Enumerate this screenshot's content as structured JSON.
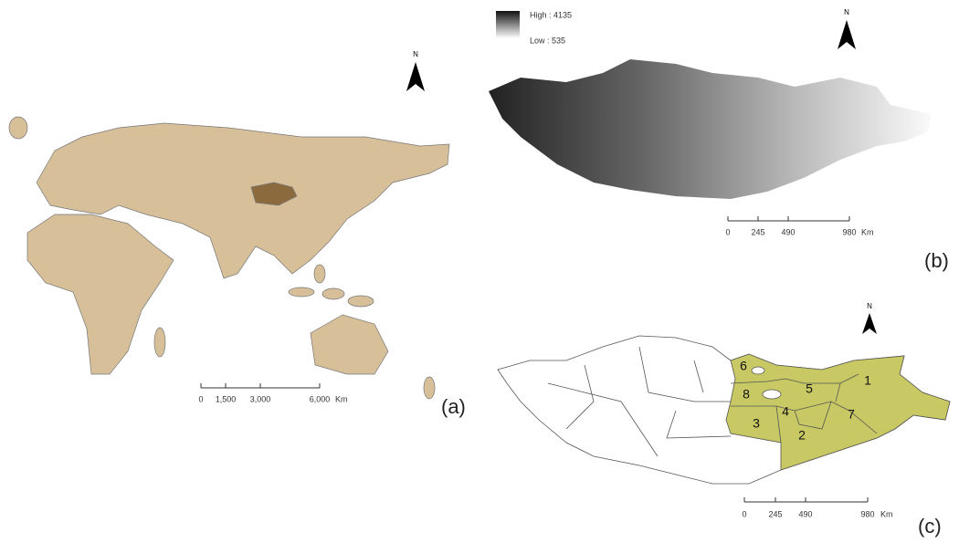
{
  "panel_a": {
    "label": "(a)",
    "north": "N",
    "scale": {
      "ticks": [
        "0",
        "1,500",
        "3,000",
        "6,000"
      ],
      "unit": "Km"
    }
  },
  "panel_b": {
    "label": "(b)",
    "north": "N",
    "legend": {
      "high": "High : 4135",
      "low": "Low : 535"
    },
    "scale": {
      "ticks": [
        "0",
        "245",
        "490",
        "980"
      ],
      "unit": "Km"
    }
  },
  "panel_c": {
    "label": "(c)",
    "north": "N",
    "regions": [
      "1",
      "2",
      "3",
      "4",
      "5",
      "6",
      "7",
      "8"
    ],
    "scale": {
      "ticks": [
        "0",
        "245",
        "490",
        "980"
      ],
      "unit": "Km"
    }
  }
}
